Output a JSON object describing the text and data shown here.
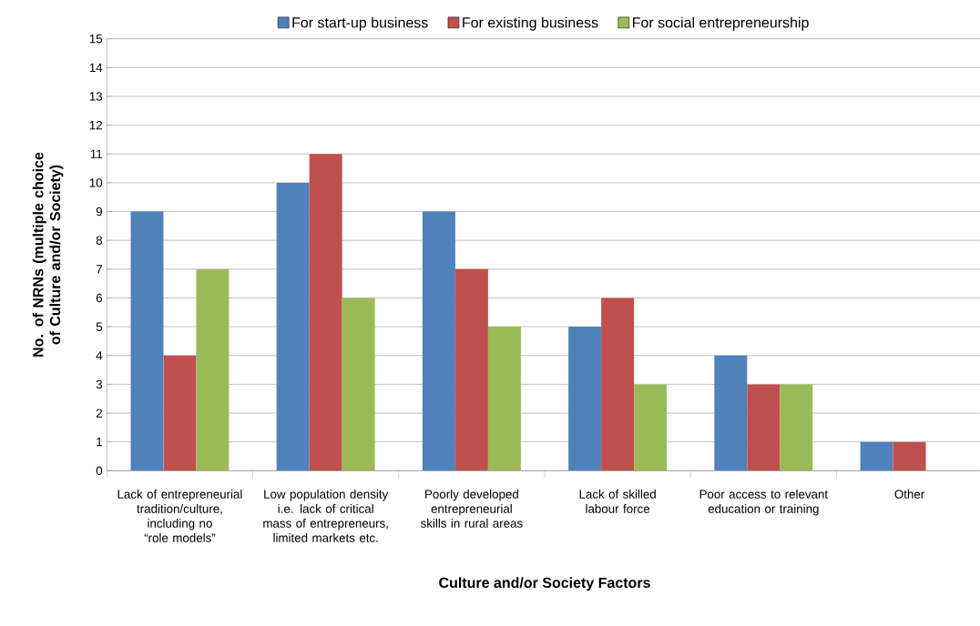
{
  "chart_data": {
    "type": "bar",
    "xlabel": "Culture and/or Society Factors",
    "ylabel": "No. of NRNs (multiple choice of Culture and/or Society)",
    "categories": [
      "Lack of entrepreneurial tradition/culture, including no “role models”",
      "Low population density i.e. lack of critical mass of entrepreneurs, limited markets etc.",
      "Poorly developed entrepreneurial skills in rural areas",
      "Lack of skilled labour force",
      "Poor access to relevant education or training",
      "Other"
    ],
    "series": [
      {
        "name": "For start-up  business",
        "color": "#4f81bd",
        "values": [
          9,
          10,
          9,
          5,
          4,
          1
        ]
      },
      {
        "name": "For existing business",
        "color": "#c0504d",
        "values": [
          4,
          11,
          7,
          6,
          3,
          1
        ]
      },
      {
        "name": "For social entrepreneurship",
        "color": "#9bbb59",
        "values": [
          7,
          6,
          5,
          3,
          3,
          null
        ]
      }
    ],
    "ylim": [
      0,
      15
    ],
    "yticks": [
      0,
      1,
      2,
      3,
      4,
      5,
      6,
      7,
      8,
      9,
      10,
      11,
      12,
      13,
      14,
      15
    ],
    "grid": "y",
    "legend": "top"
  }
}
